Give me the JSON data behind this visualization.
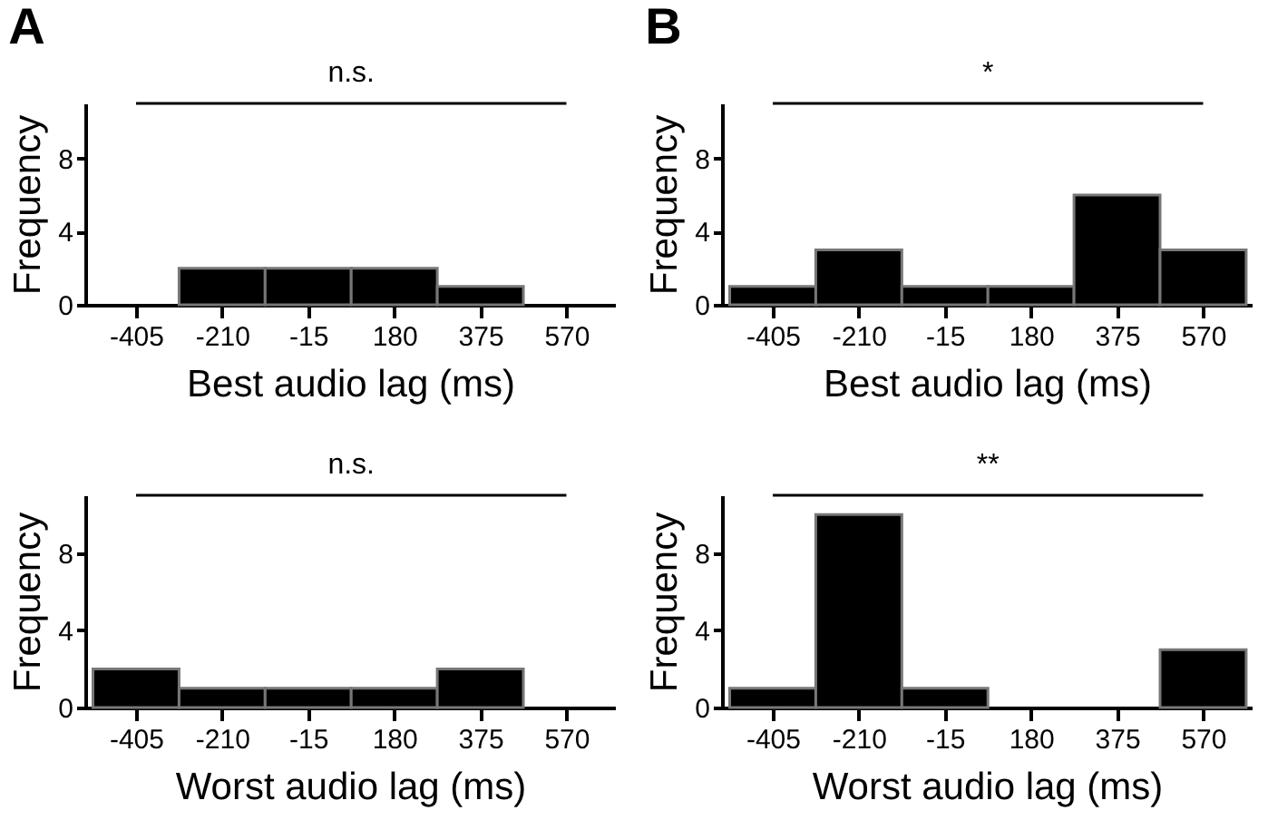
{
  "chart_data": [
    {
      "type": "histogram",
      "title": "A",
      "xlabel": "Best audio lag (ms)",
      "ylabel": "Frequency",
      "bins": [
        -502.5,
        -307.5,
        -112.5,
        82.5,
        277.5,
        472.5,
        667.5
      ],
      "values": [
        0,
        2,
        2,
        2,
        1,
        0
      ],
      "color": "#000000",
      "xlim": [
        -520,
        680
      ],
      "xticks": [
        -405,
        -210,
        -15,
        180,
        375,
        570
      ],
      "ylim": [
        0,
        11
      ],
      "yticks": [
        0,
        4,
        8
      ],
      "annotations": [
        "n.s."
      ]
    },
    {
      "type": "histogram",
      "title": "B",
      "xlabel": "Best audio lag (ms)",
      "ylabel": "Frequency",
      "bins": [
        -502.5,
        -307.5,
        -112.5,
        82.5,
        277.5,
        472.5,
        667.5
      ],
      "values": [
        1,
        3,
        1,
        1,
        6,
        3
      ],
      "color": "#000000",
      "xlim": [
        -520,
        680
      ],
      "xticks": [
        -405,
        -210,
        -15,
        180,
        375,
        570
      ],
      "ylim": [
        0,
        11
      ],
      "yticks": [
        0,
        4,
        8
      ],
      "annotations": [
        "*"
      ]
    },
    {
      "type": "histogram",
      "xlabel": "Worst audio lag (ms)",
      "ylabel": "Frequency",
      "bins": [
        -502.5,
        -307.5,
        -112.5,
        82.5,
        277.5,
        472.5,
        667.5
      ],
      "values": [
        2,
        1,
        1,
        1,
        2,
        0
      ],
      "color": "#000000",
      "xlim": [
        -520,
        680
      ],
      "xticks": [
        -405,
        -210,
        -15,
        180,
        375,
        570
      ],
      "ylim": [
        0,
        11
      ],
      "yticks": [
        0,
        4,
        8
      ],
      "annotations": [
        "n.s."
      ]
    },
    {
      "type": "histogram",
      "xlabel": "Worst audio lag (ms)",
      "ylabel": "Frequency",
      "bins": [
        -502.5,
        -307.5,
        -112.5,
        82.5,
        277.5,
        472.5,
        667.5
      ],
      "values": [
        1,
        10,
        1,
        0,
        0,
        3
      ],
      "color": "#000000",
      "xlim": [
        -520,
        680
      ],
      "xticks": [
        -405,
        -210,
        -15,
        180,
        375,
        570
      ],
      "ylim": [
        0,
        11
      ],
      "yticks": [
        0,
        4,
        8
      ],
      "annotations": [
        "**"
      ]
    }
  ]
}
